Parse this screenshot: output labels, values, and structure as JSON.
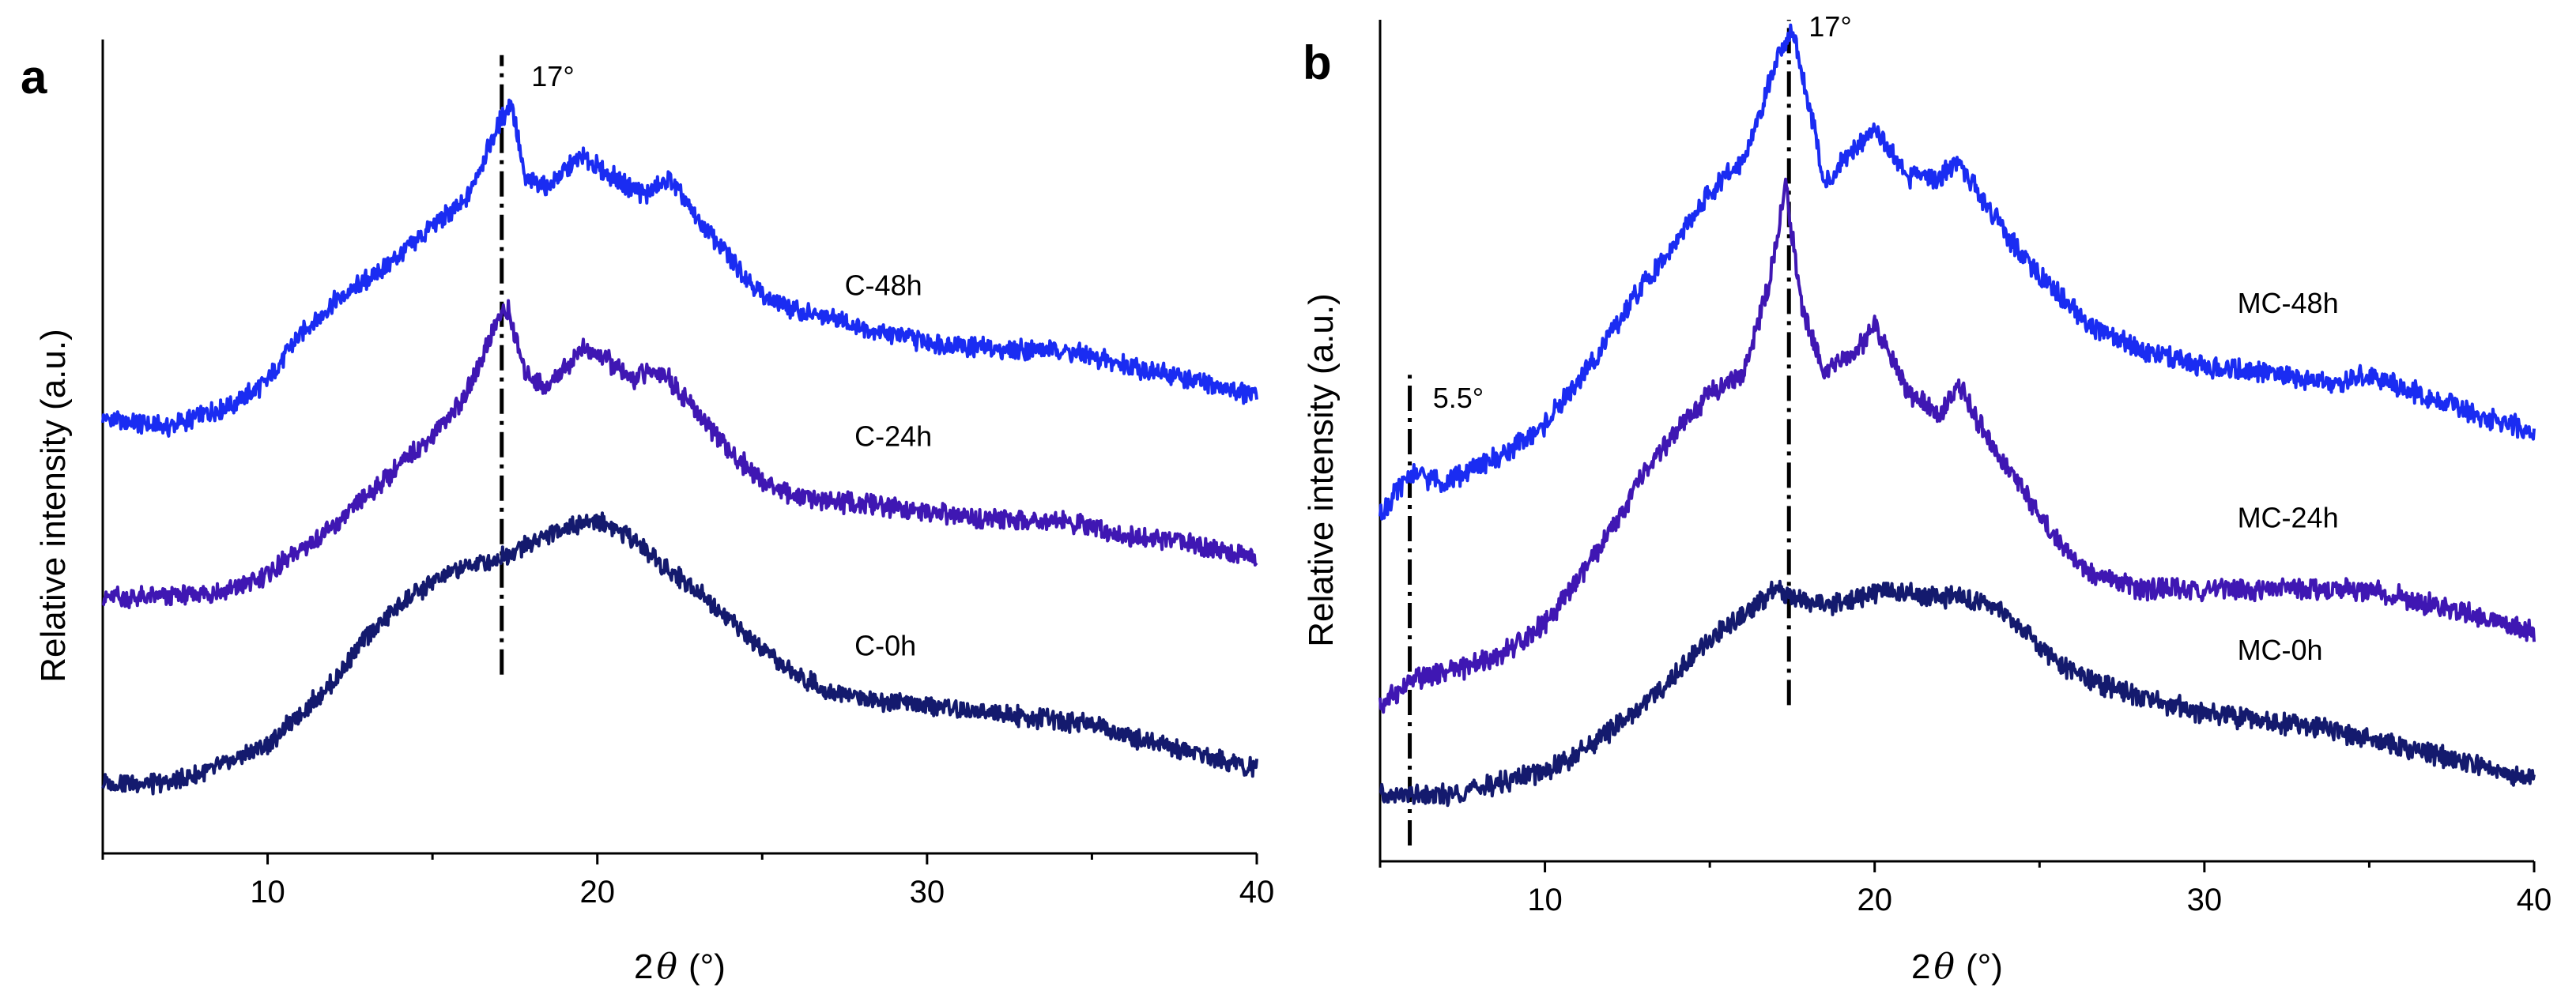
{
  "colors": {
    "axis": "#000000",
    "C-0h": "#141a6e",
    "C-24h": "#3f17b3",
    "C-48h": "#1a2cf2",
    "MC-0h": "#141a6e",
    "MC-24h": "#3f17b3",
    "MC-48h": "#1a2cf2"
  },
  "chart_data": [
    {
      "panel": "a",
      "type": "line",
      "xlabel_prefix": "2",
      "xlabel_symbol": "θ",
      "xlabel_unit": "(°)",
      "ylabel": "Relative intensity (a.u.)",
      "xlim": [
        5,
        40
      ],
      "xticks": [
        10,
        20,
        30,
        40
      ],
      "xtick_labels": [
        "10",
        "20",
        "30",
        "40"
      ],
      "ylim": [
        0,
        1.0
      ],
      "grid": false,
      "legend": "none (inline labels to the right of curves)",
      "annotations": [
        {
          "type": "vline",
          "x": 17.1,
          "y_from": 0.19,
          "y_to": 0.99,
          "style": "dash-dot",
          "label": "17°",
          "label_x": 18.0,
          "label_y": 0.95
        }
      ],
      "series": [
        {
          "name": "C-48h",
          "label_x": 27.5,
          "label_y": 0.68,
          "x": [
            5,
            7,
            9,
            10,
            11,
            12,
            13,
            14,
            15,
            16,
            16.5,
            17.0,
            17.4,
            17.8,
            18.5,
            19.5,
            20.2,
            21.0,
            21.5,
            22.2,
            23.0,
            24.0,
            25.0,
            26.0,
            28.0,
            30.0,
            32.0,
            34.0,
            35.0,
            37.0,
            40.0
          ],
          "y": [
            0.52,
            0.51,
            0.54,
            0.57,
            0.63,
            0.67,
            0.7,
            0.73,
            0.77,
            0.8,
            0.85,
            0.9,
            0.93,
            0.83,
            0.82,
            0.86,
            0.84,
            0.82,
            0.81,
            0.83,
            0.78,
            0.73,
            0.68,
            0.66,
            0.64,
            0.62,
            0.61,
            0.61,
            0.6,
            0.58,
            0.55
          ]
        },
        {
          "name": "C-24h",
          "label_x": 27.8,
          "label_y": 0.485,
          "x": [
            5,
            7,
            9,
            10,
            11,
            12,
            13,
            14,
            15,
            16,
            16.5,
            17.0,
            17.3,
            17.8,
            18.5,
            19.5,
            20.2,
            21.0,
            21.5,
            22.0,
            23.0,
            24.0,
            25.0,
            26.0,
            28.0,
            30.0,
            32.0,
            34.0,
            36.0,
            38.0,
            40.0
          ],
          "y": [
            0.29,
            0.29,
            0.3,
            0.32,
            0.35,
            0.38,
            0.42,
            0.46,
            0.5,
            0.55,
            0.6,
            0.65,
            0.66,
            0.58,
            0.56,
            0.61,
            0.6,
            0.57,
            0.58,
            0.58,
            0.53,
            0.48,
            0.44,
            0.42,
            0.41,
            0.4,
            0.39,
            0.39,
            0.37,
            0.36,
            0.34
          ]
        },
        {
          "name": "C-0h",
          "label_x": 27.8,
          "label_y": 0.215,
          "x": [
            5,
            7,
            8.5,
            10,
            11,
            12,
            13,
            14,
            15,
            16,
            17,
            18,
            19,
            20,
            21,
            22,
            23,
            24,
            25,
            26,
            27,
            28,
            30,
            32,
            34,
            35,
            36,
            38,
            40
          ],
          "y": [
            0.05,
            0.05,
            0.07,
            0.1,
            0.14,
            0.18,
            0.24,
            0.28,
            0.31,
            0.33,
            0.34,
            0.36,
            0.38,
            0.39,
            0.37,
            0.33,
            0.3,
            0.26,
            0.22,
            0.19,
            0.17,
            0.16,
            0.15,
            0.14,
            0.13,
            0.13,
            0.11,
            0.09,
            0.07
          ]
        }
      ]
    },
    {
      "panel": "b",
      "type": "line",
      "xlabel_prefix": "2",
      "xlabel_symbol": "θ",
      "xlabel_unit": "(°)",
      "ylabel": "Relative intensity (a.u.)",
      "xlim": [
        5,
        40
      ],
      "xticks": [
        10,
        20,
        30,
        40
      ],
      "xtick_labels": [
        "10",
        "20",
        "30",
        "40"
      ],
      "ylim": [
        0,
        1.0
      ],
      "grid": false,
      "legend": "none (inline labels to the right of curves)",
      "annotations": [
        {
          "type": "vline",
          "x": 17.4,
          "y_from": 0.17,
          "y_to": 1.0,
          "style": "dash-dot",
          "label": "17°",
          "label_x": 18.0,
          "label_y": 0.98
        },
        {
          "type": "vline",
          "x": 5.9,
          "y_from": 0.0,
          "y_to": 0.57,
          "style": "dash-dot",
          "label": "5.5°",
          "label_x": 6.6,
          "label_y": 0.53
        }
      ],
      "series": [
        {
          "name": "MC-48h",
          "label_x": 31.0,
          "label_y": 0.645,
          "x": [
            5,
            5.9,
            7,
            8,
            9,
            10,
            11,
            12,
            13,
            14,
            15,
            16,
            16.5,
            17.0,
            17.5,
            18.0,
            18.5,
            19.5,
            20.0,
            21.0,
            22.0,
            22.5,
            23.5,
            24.5,
            25.5,
            26.5,
            28.0,
            30.0,
            32.0,
            34.0,
            35.0,
            37.0,
            40.0
          ],
          "y": [
            0.4,
            0.45,
            0.44,
            0.46,
            0.48,
            0.51,
            0.56,
            0.62,
            0.68,
            0.73,
            0.79,
            0.83,
            0.88,
            0.95,
            0.99,
            0.9,
            0.8,
            0.85,
            0.87,
            0.81,
            0.81,
            0.83,
            0.77,
            0.71,
            0.67,
            0.63,
            0.6,
            0.58,
            0.57,
            0.56,
            0.57,
            0.54,
            0.5
          ]
        },
        {
          "name": "MC-24h",
          "label_x": 31.0,
          "label_y": 0.385,
          "x": [
            5,
            6,
            7,
            8,
            9,
            10,
            11,
            12,
            13,
            14,
            15,
            15.5,
            16,
            16.8,
            17.3,
            17.8,
            18.5,
            19.5,
            20.0,
            21.0,
            22.0,
            22.5,
            23.5,
            24.5,
            25.5,
            26.5,
            28.0,
            30.0,
            32.0,
            34.0,
            35.0,
            37.0,
            40.0
          ],
          "y": [
            0.17,
            0.2,
            0.21,
            0.22,
            0.24,
            0.27,
            0.32,
            0.38,
            0.45,
            0.5,
            0.55,
            0.56,
            0.57,
            0.68,
            0.8,
            0.65,
            0.57,
            0.6,
            0.63,
            0.55,
            0.52,
            0.56,
            0.49,
            0.43,
            0.37,
            0.33,
            0.31,
            0.31,
            0.31,
            0.31,
            0.31,
            0.29,
            0.26
          ]
        },
        {
          "name": "MC-0h",
          "label_x": 31.0,
          "label_y": 0.225,
          "x": [
            5,
            6,
            7,
            8,
            9,
            10,
            11,
            12,
            13,
            14,
            15,
            16,
            17,
            17.5,
            18.5,
            19.5,
            20.5,
            21.5,
            22.5,
            23.5,
            24.5,
            25.5,
            26.5,
            28.0,
            30.0,
            32.0,
            34.0,
            35.0,
            36.0,
            38.0,
            40.0
          ],
          "y": [
            0.06,
            0.06,
            0.06,
            0.07,
            0.08,
            0.09,
            0.11,
            0.14,
            0.17,
            0.21,
            0.25,
            0.28,
            0.31,
            0.3,
            0.29,
            0.3,
            0.31,
            0.3,
            0.3,
            0.29,
            0.26,
            0.22,
            0.2,
            0.18,
            0.16,
            0.15,
            0.14,
            0.13,
            0.12,
            0.1,
            0.08
          ]
        }
      ]
    }
  ]
}
